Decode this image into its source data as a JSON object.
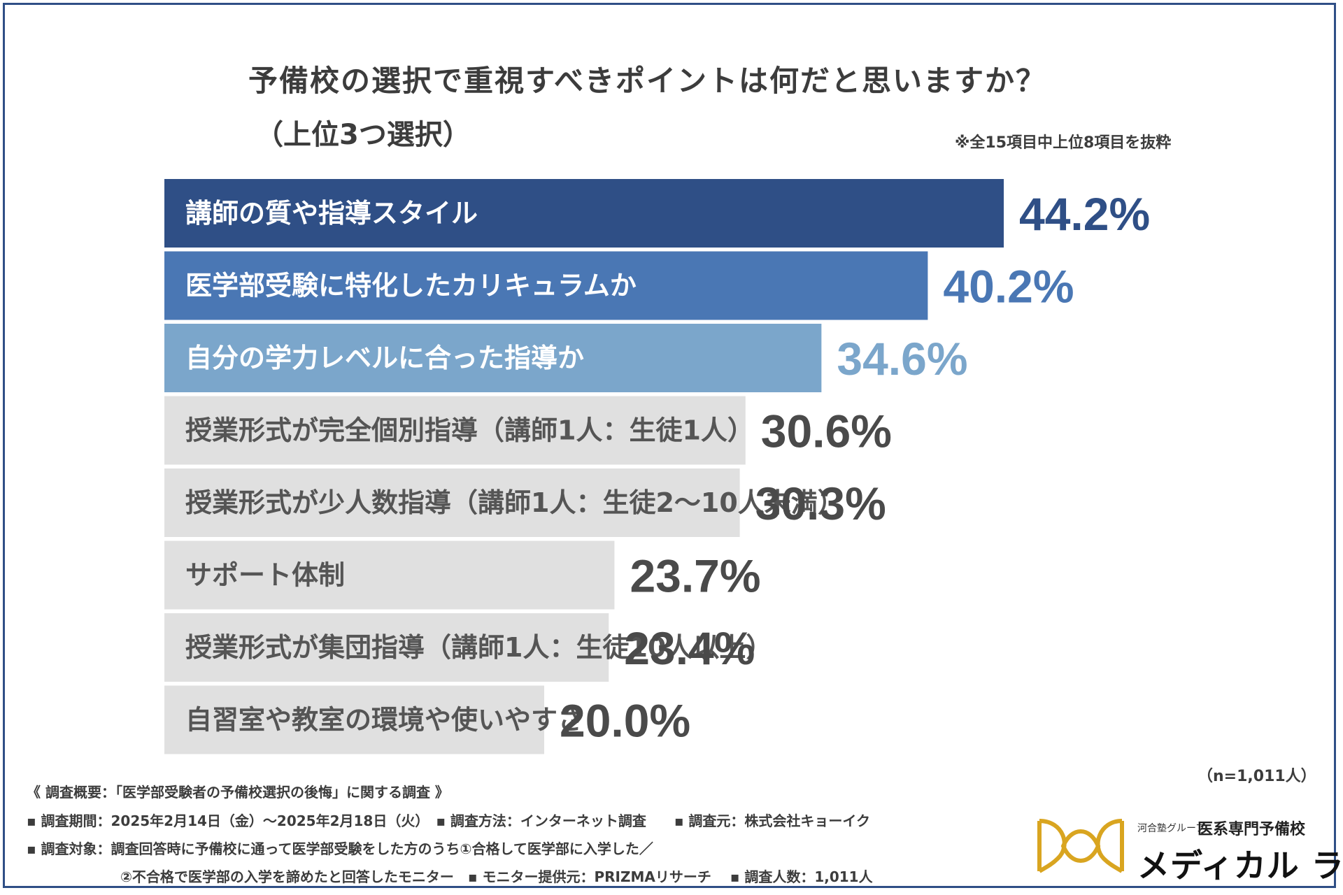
{
  "header": {
    "title": "予備校の選択で重視すべきポイントは何だと思いますか？",
    "subtitle": "（上位3つ選択）",
    "note": "※全15項目中上位8項目を抜粋"
  },
  "chart_data": {
    "type": "bar",
    "orientation": "horizontal",
    "title": "予備校の選択で重視すべきポイントは何だと思いますか？（上位3つ選択）",
    "categories": [
      "講師の質や指導スタイル",
      "医学部受験に特化したカリキュラムか",
      "自分の学力レベルに合った指導か",
      "授業形式が完全個別指導（講師1人：生徒1人）",
      "授業形式が少人数指導（講師1人：生徒2～10人未満）",
      "サポート体制",
      "授業形式が集団指導（講師1人：生徒10人以上）",
      "自習室や教室の環境や使いやすさ"
    ],
    "values": [
      44.2,
      40.2,
      34.6,
      30.6,
      30.3,
      23.7,
      23.4,
      20.0
    ],
    "value_labels": [
      "44.2%",
      "40.2%",
      "34.6%",
      "30.6%",
      "30.3%",
      "23.7%",
      "23.4%",
      "20.0%"
    ],
    "bar_colors": [
      "#2f4f86",
      "#4a77b4",
      "#7ba6cb",
      "#e0e0e0",
      "#e0e0e0",
      "#e0e0e0",
      "#e0e0e0",
      "#e0e0e0"
    ],
    "label_colors": [
      "#ffffff",
      "#ffffff",
      "#ffffff",
      "#555555",
      "#555555",
      "#555555",
      "#555555",
      "#555555"
    ],
    "value_colors": [
      "#2f4f86",
      "#4a77b4",
      "#7ba6cb",
      "#4a4a4a",
      "#4a4a4a",
      "#4a4a4a",
      "#4a4a4a",
      "#4a4a4a"
    ],
    "xlim": [
      0,
      44.2
    ]
  },
  "footer": {
    "n": "（n=1,011人）",
    "line1": "《 調査概要：「医学部受験者の予備校選択の後悔」に関する調査 》",
    "line2": "▪ 調査期間：2025年2月14日（金）～2025年2月18日（火）　▪ 調査方法：インターネット調査　　▪ 調査元：株式会社キョーイク",
    "line3": "▪ 調査対象：調査回答時に予備校に通って医学部受験をした方のうち①合格して医学部に入学した／",
    "line4": "②不合格で医学部の入学を諦めたと回答したモニター　▪ モニター提供元：PRIZMAリサーチ　 ▪ 調査人数：1,011人"
  },
  "logo": {
    "small": "河合塾グループ",
    "sub": "医系専門予備校",
    "main": "メディカル ラボ"
  },
  "colors": {
    "frame": "#2f4f86",
    "logo_gold": "#d9a520"
  }
}
